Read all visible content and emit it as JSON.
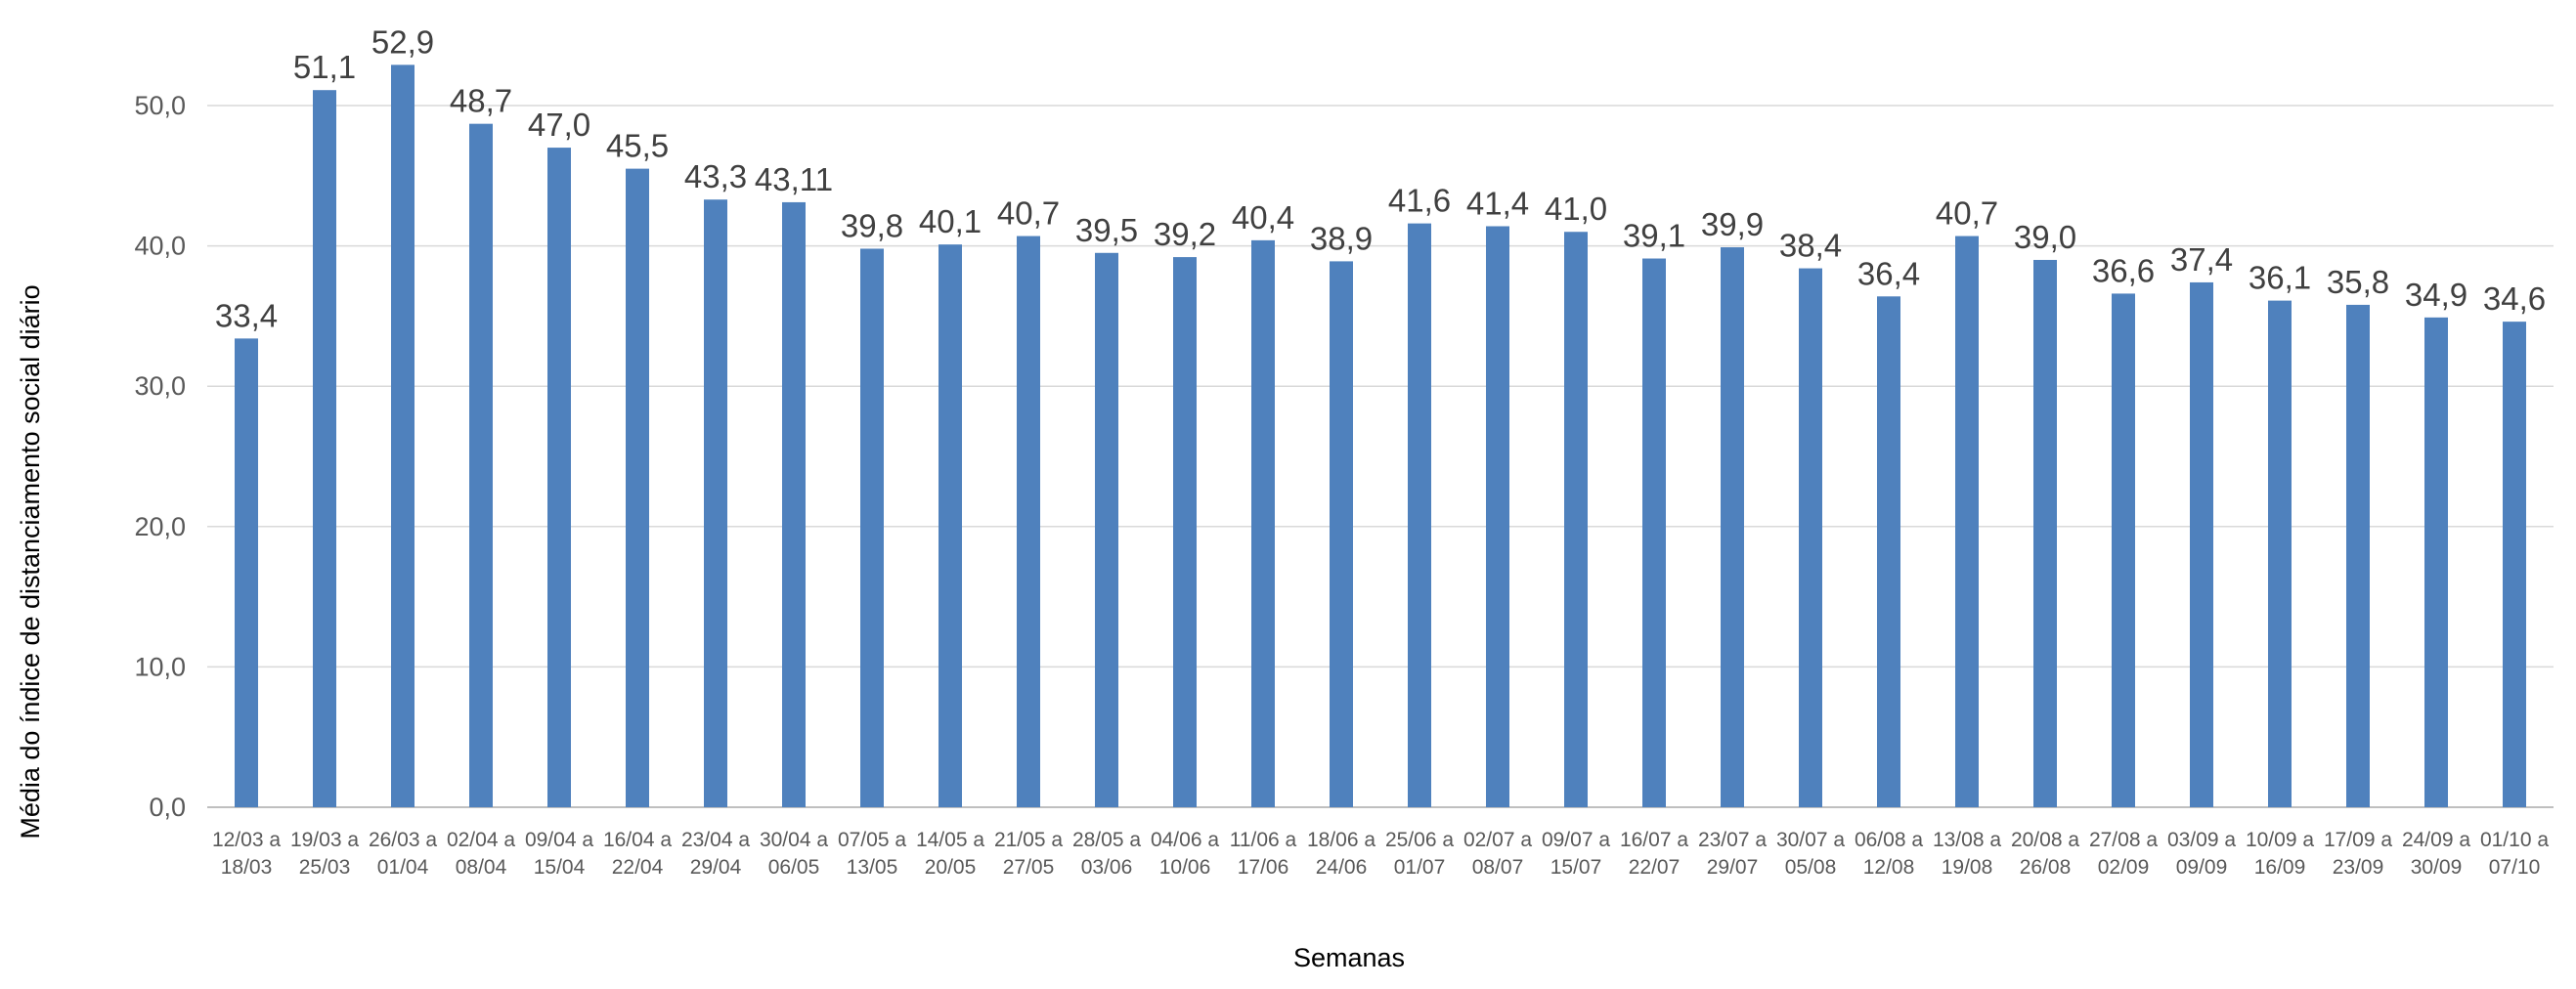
{
  "chart_data": {
    "type": "bar",
    "xlabel": "Semanas",
    "ylabel": "Média do índice de distanciamento social diário",
    "ylim": [
      0,
      55
    ],
    "yticks": [
      "0,0",
      "10,0",
      "20,0",
      "30,0",
      "40,0",
      "50,0"
    ],
    "ytick_values": [
      0,
      10,
      20,
      30,
      40,
      50
    ],
    "grid": true,
    "legend": "none",
    "bar_color": "#4F81BD",
    "categories": [
      [
        "12/03 a",
        "18/03"
      ],
      [
        "19/03 a",
        "25/03"
      ],
      [
        "26/03 a",
        "01/04"
      ],
      [
        "02/04 a",
        "08/04"
      ],
      [
        "09/04 a",
        "15/04"
      ],
      [
        "16/04 a",
        "22/04"
      ],
      [
        "23/04 a",
        "29/04"
      ],
      [
        "30/04 a",
        "06/05"
      ],
      [
        "07/05 a",
        "13/05"
      ],
      [
        "14/05 a",
        "20/05"
      ],
      [
        "21/05 a",
        "27/05"
      ],
      [
        "28/05 a",
        "03/06"
      ],
      [
        "04/06 a",
        "10/06"
      ],
      [
        "11/06 a",
        "17/06"
      ],
      [
        "18/06 a",
        "24/06"
      ],
      [
        "25/06 a",
        "01/07"
      ],
      [
        "02/07 a",
        "08/07"
      ],
      [
        "09/07 a",
        "15/07"
      ],
      [
        "16/07 a",
        "22/07"
      ],
      [
        "23/07 a",
        "29/07"
      ],
      [
        "30/07 a",
        "05/08"
      ],
      [
        "06/08 a",
        "12/08"
      ],
      [
        "13/08 a",
        "19/08"
      ],
      [
        "20/08 a",
        "26/08"
      ],
      [
        "27/08 a",
        "02/09"
      ],
      [
        "03/09 a",
        "09/09"
      ],
      [
        "10/09 a",
        "16/09"
      ],
      [
        "17/09 a",
        "23/09"
      ],
      [
        "24/09 a",
        "30/09"
      ],
      [
        "01/10 a",
        "07/10"
      ]
    ],
    "values": [
      33.4,
      51.1,
      52.9,
      48.7,
      47.0,
      45.5,
      43.3,
      43.11,
      39.8,
      40.1,
      40.7,
      39.5,
      39.2,
      40.4,
      38.9,
      41.6,
      41.4,
      41.0,
      39.1,
      39.9,
      38.4,
      36.4,
      40.7,
      39.0,
      36.6,
      37.4,
      36.1,
      35.8,
      34.9,
      34.6
    ],
    "value_labels": [
      "33,4",
      "51,1",
      "52,9",
      "48,7",
      "47,0",
      "45,5",
      "43,3",
      "43,11",
      "39,8",
      "40,1",
      "40,7",
      "39,5",
      "39,2",
      "40,4",
      "38,9",
      "41,6",
      "41,4",
      "41,0",
      "39,1",
      "39,9",
      "38,4",
      "36,4",
      "40,7",
      "39,0",
      "36,6",
      "37,4",
      "36,1",
      "35,8",
      "34,9",
      "34,6"
    ]
  }
}
